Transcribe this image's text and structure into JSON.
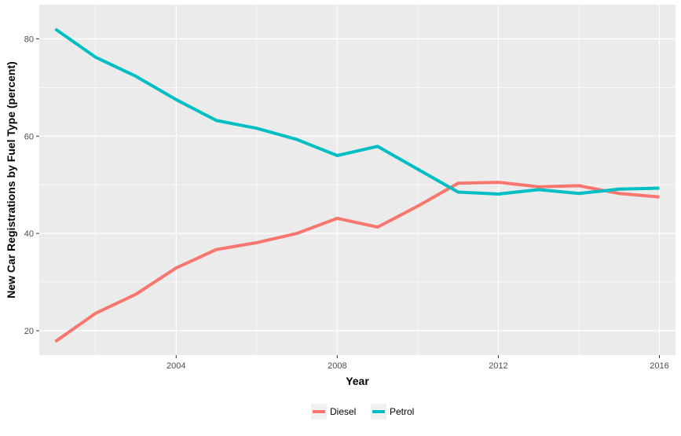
{
  "chart_data": {
    "type": "line",
    "title": "",
    "xlabel": "Year",
    "ylabel": "New Car Registrations by Fuel Type (percent)",
    "xlim": [
      2000.6,
      2016.4
    ],
    "ylim": [
      15,
      87
    ],
    "x_ticks": [
      2004,
      2008,
      2012,
      2016
    ],
    "x_minor_ticks": [
      2002,
      2006,
      2010,
      2014
    ],
    "y_ticks": [
      20,
      40,
      60,
      80
    ],
    "y_minor_ticks": [
      30,
      50,
      70
    ],
    "grid": true,
    "background": "#ebebeb",
    "legend_position": "bottom",
    "x": [
      2001,
      2002,
      2003,
      2004,
      2005,
      2006,
      2007,
      2008,
      2009,
      2010,
      2011,
      2012,
      2013,
      2014,
      2015,
      2016
    ],
    "series": [
      {
        "name": "Diesel",
        "color": "#f8766d",
        "values": [
          17.8,
          23.6,
          27.5,
          32.9,
          36.7,
          38.1,
          40.0,
          43.1,
          41.3,
          45.6,
          50.3,
          50.5,
          49.6,
          49.8,
          48.2,
          47.5
        ]
      },
      {
        "name": "Petrol",
        "color": "#00bfc4",
        "values": [
          82.0,
          76.2,
          72.3,
          67.5,
          63.2,
          61.6,
          59.3,
          56.0,
          57.9,
          53.2,
          48.5,
          48.1,
          49.0,
          48.2,
          49.1,
          49.3
        ]
      }
    ]
  }
}
